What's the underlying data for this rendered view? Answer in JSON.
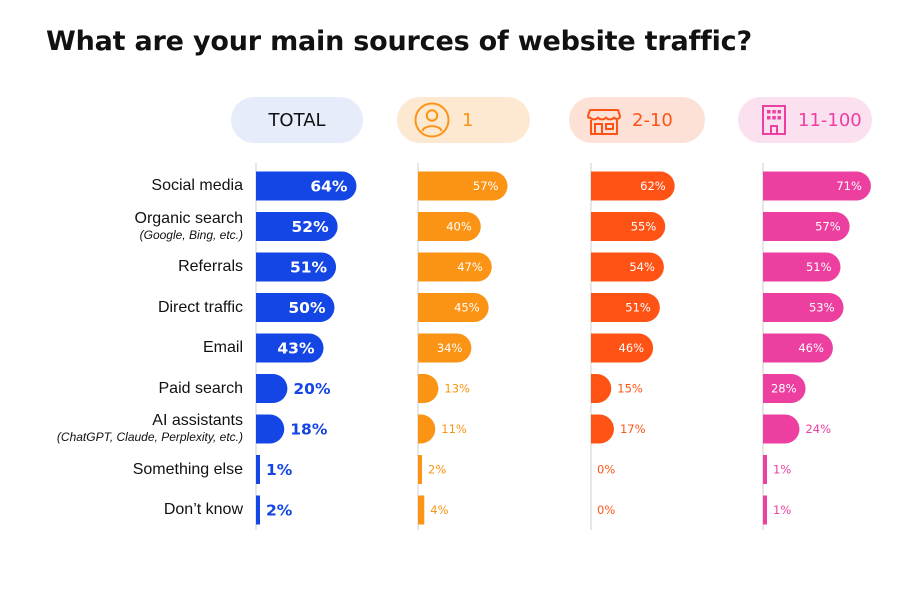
{
  "colors": {
    "total": "#1446e6",
    "solo": "#fb9414",
    "small": "#ff5316",
    "medium": "#ec3fa0",
    "total_pill_bg": "#e7ecfb",
    "solo_pill_bg": "#fde8d2",
    "small_pill_bg": "#fde1d6",
    "medium_pill_bg": "#fbe0ef"
  },
  "chart_data": {
    "type": "bar",
    "orientation": "horizontal",
    "title": "What are your main sources of website traffic?",
    "categories": [
      {
        "label": "Social media",
        "sublabel": ""
      },
      {
        "label": "Organic search",
        "sublabel": "(Google, Bing, etc.)"
      },
      {
        "label": "Referrals",
        "sublabel": ""
      },
      {
        "label": "Direct traffic",
        "sublabel": ""
      },
      {
        "label": "Email",
        "sublabel": ""
      },
      {
        "label": "Paid search",
        "sublabel": ""
      },
      {
        "label": "AI assistants",
        "sublabel": "(ChatGPT, Claude, Perplexity, etc.)"
      },
      {
        "label": "Something else",
        "sublabel": ""
      },
      {
        "label": "Don’t know",
        "sublabel": ""
      }
    ],
    "series": [
      {
        "name": "TOTAL",
        "icon": "",
        "color": "#1446e6",
        "values": [
          64,
          52,
          51,
          50,
          43,
          20,
          18,
          1,
          2
        ]
      },
      {
        "name": "1",
        "icon": "person-icon",
        "color": "#fb9414",
        "values": [
          57,
          40,
          47,
          45,
          34,
          13,
          11,
          2,
          4
        ]
      },
      {
        "name": "2-10",
        "icon": "storefront-icon",
        "color": "#ff5316",
        "values": [
          62,
          55,
          54,
          51,
          46,
          15,
          17,
          0,
          0
        ]
      },
      {
        "name": "11-100",
        "icon": "office-building-icon",
        "color": "#ec3fa0",
        "values": [
          71,
          57,
          51,
          53,
          46,
          28,
          24,
          1,
          1
        ]
      }
    ],
    "value_suffix": "%",
    "xlim": [
      0,
      100
    ],
    "grid": false,
    "legend": "top"
  }
}
